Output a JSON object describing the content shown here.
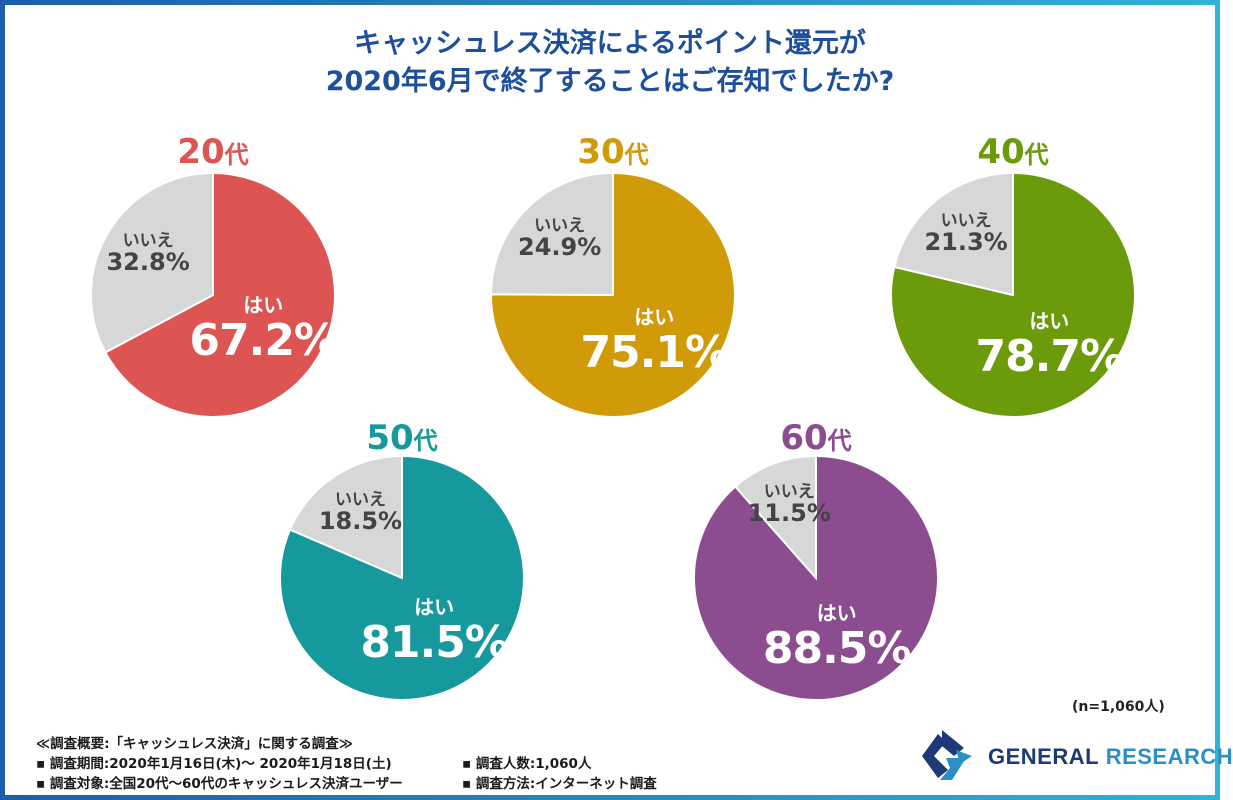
{
  "title_line1": "キャッシュレス決済によるポイント還元が",
  "title_line2": "2020年6月で終了することはご存知でしたか?",
  "chart_data": {
    "type": "pie",
    "title": "キャッシュレス決済によるポイント還元が2020年6月で終了することはご存知でしたか?",
    "yes_label": "はい",
    "no_label": "いいえ",
    "charts": [
      {
        "age_num": "20",
        "age_suffix": "代",
        "yes": 67.2,
        "no": 32.8,
        "yes_text": "67.2%",
        "no_text": "32.8%",
        "color": "#dc5553"
      },
      {
        "age_num": "30",
        "age_suffix": "代",
        "yes": 75.1,
        "no": 24.9,
        "yes_text": "75.1%",
        "no_text": "24.9%",
        "color": "#d09a08"
      },
      {
        "age_num": "40",
        "age_suffix": "代",
        "yes": 78.7,
        "no": 21.3,
        "yes_text": "78.7%",
        "no_text": "21.3%",
        "color": "#6b9a0a"
      },
      {
        "age_num": "50",
        "age_suffix": "代",
        "yes": 81.5,
        "no": 18.5,
        "yes_text": "81.5%",
        "no_text": "18.5%",
        "color": "#16999c"
      },
      {
        "age_num": "60",
        "age_suffix": "代",
        "yes": 88.5,
        "no": 11.5,
        "yes_text": "88.5%",
        "no_text": "11.5%",
        "color": "#8b4c90"
      }
    ],
    "no_color": "#d7d7d7"
  },
  "sample_note": "(n=1,060人)",
  "notes": {
    "heading": "≪調査概要:「キャッシュレス決済」に関する調査≫",
    "period": "▪ 調査期間:2020年1月16日(木)〜 2020年1月18日(土)",
    "target": "▪ 調査対象:全国20代〜60代のキャッシュレス決済ユーザー",
    "count": "▪ 調査人数:1,060人",
    "method": "▪ 調査方法:インターネット調査"
  },
  "logo": {
    "word1": "GENERAL",
    "word2": "RESEARCH"
  }
}
